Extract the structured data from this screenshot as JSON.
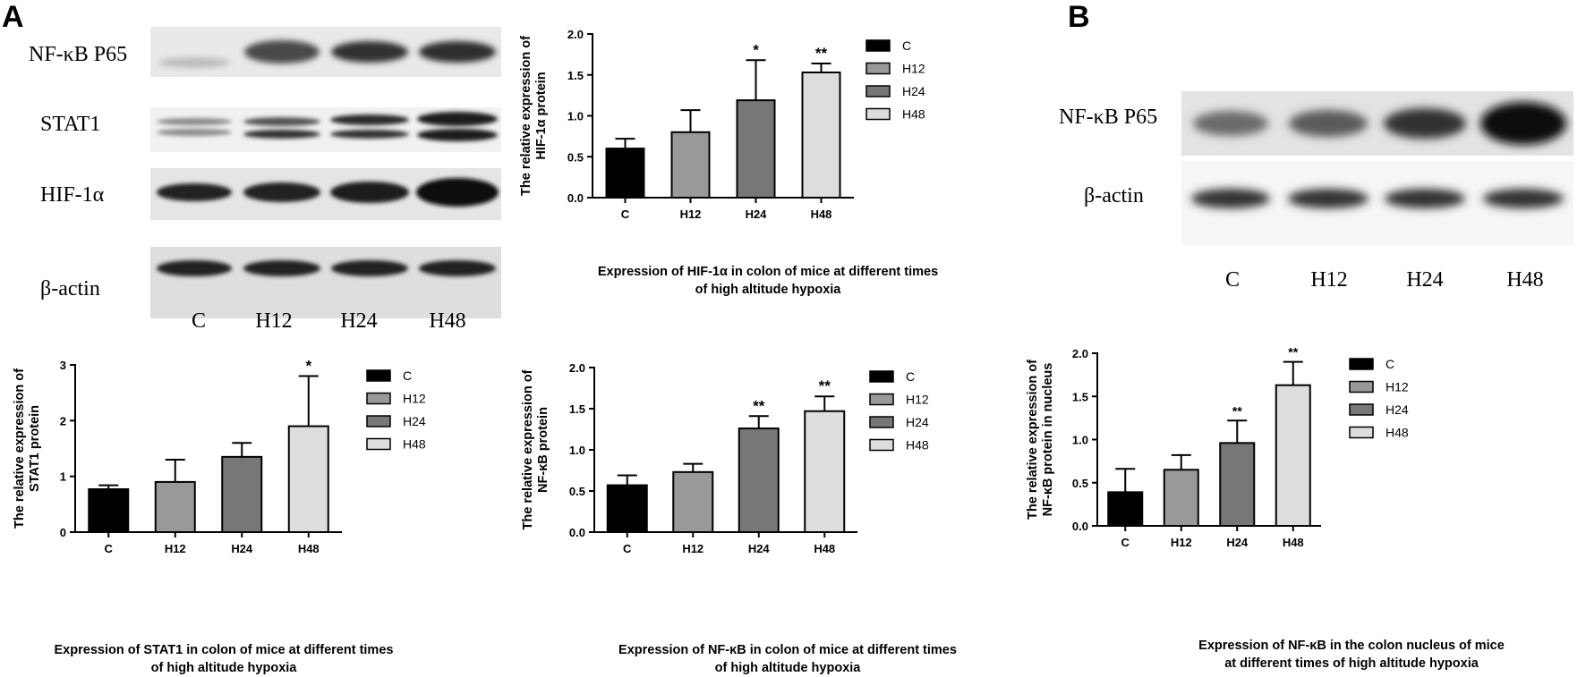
{
  "panels": {
    "A": "A",
    "B": "B"
  },
  "blot_A": {
    "rows": [
      "NF-κB P65",
      "STAT1",
      "HIF-1α",
      "β-actin"
    ],
    "lanes": [
      "C",
      "H12",
      "H24",
      "H48"
    ]
  },
  "blot_B": {
    "rows": [
      "NF-κB P65",
      "β-actin"
    ],
    "lanes": [
      "C",
      "H12",
      "H24",
      "H48"
    ]
  },
  "colors": {
    "C": "#000000",
    "H12": "#999999",
    "H24": "#777777",
    "H48": "#dddddd"
  },
  "chart_data": [
    {
      "id": "hif",
      "type": "bar",
      "categories": [
        "C",
        "H12",
        "H24",
        "H48"
      ],
      "values": [
        0.6,
        0.8,
        1.19,
        1.53
      ],
      "errors": [
        0.12,
        0.27,
        0.49,
        0.11
      ],
      "significance": [
        "",
        "",
        "*",
        "**"
      ],
      "ylabel_lines": [
        "The relative expression of",
        "HIF-1α protein"
      ],
      "yticks": [
        "0.0",
        "0.5",
        "1.0",
        "1.5",
        "2.0"
      ],
      "ylim": [
        0,
        2.0
      ],
      "legend": [
        "C",
        "H12",
        "H24",
        "H48"
      ],
      "caption_lines": [
        "Expression of HIF-1α in colon of mice at different times",
        "of high altitude hypoxia"
      ]
    },
    {
      "id": "stat1",
      "type": "bar",
      "categories": [
        "C",
        "H12",
        "H24",
        "H48"
      ],
      "values": [
        0.77,
        0.9,
        1.35,
        1.9
      ],
      "errors": [
        0.07,
        0.4,
        0.25,
        0.9
      ],
      "significance": [
        "",
        "",
        "",
        "*"
      ],
      "ylabel_lines": [
        "The relative expression of",
        "STAT1 protein"
      ],
      "yticks": [
        "0",
        "1",
        "2",
        "3"
      ],
      "ylim": [
        0,
        3
      ],
      "legend": [
        "C",
        "H12",
        "H24",
        "H48"
      ],
      "caption_lines": [
        "Expression of STAT1 in colon of mice at different times",
        "of high altitude hypoxia"
      ]
    },
    {
      "id": "nfkb",
      "type": "bar",
      "categories": [
        "C",
        "H12",
        "H24",
        "H48"
      ],
      "values": [
        0.57,
        0.73,
        1.26,
        1.47
      ],
      "errors": [
        0.12,
        0.1,
        0.15,
        0.18
      ],
      "significance": [
        "",
        "",
        "**",
        "**"
      ],
      "ylabel_lines": [
        "The relative expression of",
        "NF-κB protein"
      ],
      "yticks": [
        "0.0",
        "0.5",
        "1.0",
        "1.5",
        "2.0"
      ],
      "ylim": [
        0,
        2.0
      ],
      "legend": [
        "C",
        "H12",
        "H24",
        "H48"
      ],
      "caption_lines": [
        "Expression of NF-κB in colon of mice at different times",
        "of high altitude hypoxia"
      ]
    },
    {
      "id": "nfkbnuc",
      "type": "bar",
      "categories": [
        "C",
        "H12",
        "H24",
        "H48"
      ],
      "values": [
        0.39,
        0.65,
        0.96,
        1.63
      ],
      "errors": [
        0.27,
        0.17,
        0.26,
        0.27
      ],
      "significance": [
        "",
        "",
        "**",
        "**"
      ],
      "ylabel_lines": [
        "The relative expression of",
        "NF-κB protein in nucleus"
      ],
      "yticks": [
        "0.0",
        "0.5",
        "1.0",
        "1.5",
        "2.0"
      ],
      "ylim": [
        0,
        2.0
      ],
      "legend": [
        "C",
        "H12",
        "H24",
        "H48"
      ],
      "caption_lines": [
        "Expression of NF-κB in the colon nucleus  of mice",
        "at different times of high altitude hypoxia"
      ]
    }
  ]
}
